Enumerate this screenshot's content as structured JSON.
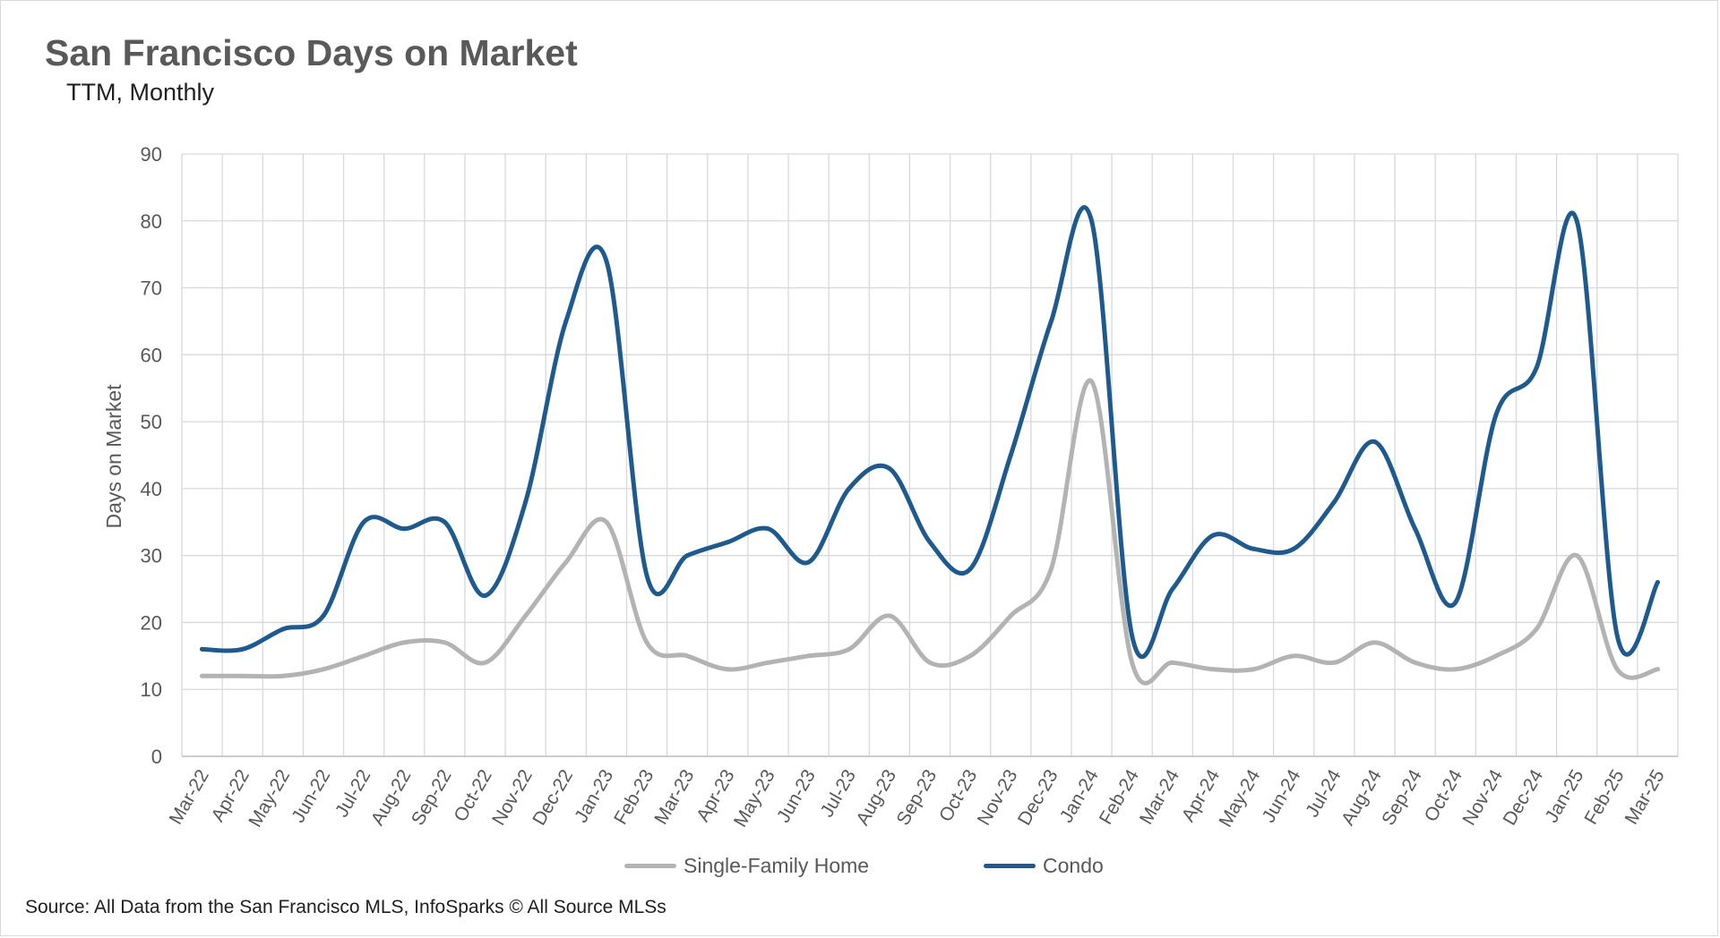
{
  "title": "San Francisco Days on Market",
  "subtitle": "TTM, Monthly",
  "source": "Source: All Data from the San Francisco MLS, InfoSparks © All Source MLSs",
  "colors": {
    "single_family": "#b3b3b3",
    "condo": "#1f5a8f",
    "grid": "#d9d9d9",
    "axis_text": "#595959"
  },
  "chart_data": {
    "type": "line",
    "title": "San Francisco Days on Market",
    "subtitle": "TTM, Monthly",
    "xlabel": "",
    "ylabel": "Days on Market",
    "ylim": [
      0,
      90
    ],
    "yticks": [
      0,
      10,
      20,
      30,
      40,
      50,
      60,
      70,
      80,
      90
    ],
    "grid": true,
    "legend_position": "bottom",
    "categories": [
      "Mar-22",
      "Apr-22",
      "May-22",
      "Jun-22",
      "Jul-22",
      "Aug-22",
      "Sep-22",
      "Oct-22",
      "Nov-22",
      "Dec-22",
      "Jan-23",
      "Feb-23",
      "Mar-23",
      "Apr-23",
      "May-23",
      "Jun-23",
      "Jul-23",
      "Aug-23",
      "Sep-23",
      "Oct-23",
      "Nov-23",
      "Dec-23",
      "Jan-24",
      "Feb-24",
      "Mar-24",
      "Apr-24",
      "May-24",
      "Jun-24",
      "Jul-24",
      "Aug-24",
      "Sep-24",
      "Oct-24",
      "Nov-24",
      "Dec-24",
      "Jan-25",
      "Feb-25",
      "Mar-25"
    ],
    "series": [
      {
        "name": "Single-Family Home",
        "color": "#b3b3b3",
        "values": [
          12,
          12,
          12,
          13,
          15,
          17,
          17,
          14,
          21,
          29,
          35,
          17,
          15,
          13,
          14,
          15,
          16,
          21,
          14,
          15,
          21,
          28,
          56,
          14,
          14,
          13,
          13,
          15,
          14,
          17,
          14,
          13,
          15,
          19,
          30,
          13,
          13
        ]
      },
      {
        "name": "Condo",
        "color": "#1f5a8f",
        "values": [
          16,
          16,
          19,
          21,
          35,
          34,
          35,
          24,
          38,
          65,
          74,
          27,
          30,
          32,
          34,
          29,
          40,
          43,
          32,
          28,
          45,
          65,
          80,
          18,
          25,
          33,
          31,
          31,
          38,
          47,
          34,
          23,
          51,
          58,
          80,
          18,
          26
        ]
      }
    ]
  }
}
